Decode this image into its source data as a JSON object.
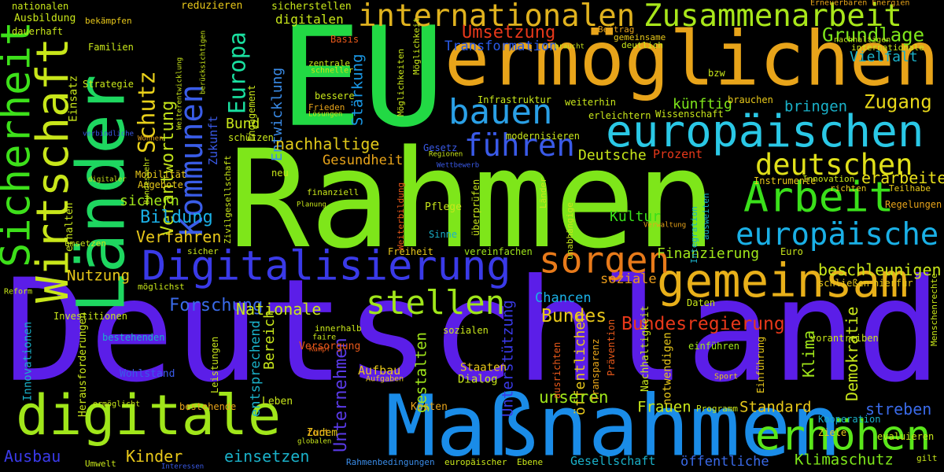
{
  "words": [
    "Deutschland",
    "Rahmen",
    "EU",
    "ermöglichen",
    "Länder",
    "Maßnahmen",
    "digitale",
    "Sicherheit",
    "Wirtschaft",
    "Kommunen",
    "Schutz",
    "Verantwortung",
    "Europa",
    "internationalen",
    "Zusammenarbeit",
    "bauen",
    "europäischen",
    "führen",
    "Arbeit",
    "deutschen",
    "europäische",
    "gemeinsam",
    "Digitalisierung",
    "sorgen",
    "stellen",
    "erhöhen",
    "Grundlage",
    "Vielfalt",
    "Umsetzung",
    "Transformation",
    "Bund",
    "Entwicklung",
    "nachhaltige",
    "Gesundheit",
    "Stärkung",
    "Deutsche",
    "Bildung",
    "sichern",
    "Verfahren",
    "Nutzung",
    "Forschung",
    "Nationale",
    "Bundes",
    "Bundesregierung",
    "Chancen",
    "soziale",
    "Finanzierung",
    "beschleunigen",
    "Kultur",
    "Zugang",
    "bringen",
    "künftig",
    "erarbeiten",
    "Demokratie",
    "Klima",
    "Unterstützung",
    "öffentlichen",
    "gestalten",
    "Unternehmen",
    "entsprechend",
    "Bereich",
    "unseren",
    "Frauen",
    "Standard",
    "streben",
    "Ausbau",
    "Kinder",
    "einsetzen",
    "Klimaschutz",
    "Gesellschaft",
    "öffentliche",
    "Dialog",
    "Staaten",
    "Aufbau",
    "Aufgaben",
    "Kosten",
    "Zudem",
    "Leben",
    "Wohlstand",
    "Innovationen",
    "Herausforderungen",
    "Investitionen",
    "bestehenden",
    "möglichst",
    "Versorgung",
    "innerhalb",
    "sozialen",
    "Freiheit",
    "vereinfachen",
    "Pflege",
    "Sinne",
    "Prozent",
    "Instrumente",
    "Innovation",
    "richten",
    "Teilhabe",
    "Regelungen",
    "Euro",
    "schließen",
    "hierfür",
    "Daten",
    "vorantreiben",
    "Sport",
    "Einführung",
    "einführen",
    "Prävention",
    "notwendigen",
    "Nachhaltigkeit",
    "Kooperation",
    "Ziele",
    "evaluieren",
    "gilt",
    "Menschenrechte",
    "Erneuerbaren Energien",
    "nachhaltigen",
    "internationale",
    "bzw",
    "weiterhin",
    "erleichtern",
    "Wissenschaft",
    "brauchen",
    "Infrastruktur",
    "modernisieren",
    "Gesetz",
    "Beitrag",
    "gemeinsame",
    "deutlich",
    "braucht",
    "Basis",
    "zentrale",
    "schneller",
    "bessere",
    "Frieden",
    "Lösungen",
    "Möglichkeiten",
    "Möglichkeit",
    "Zukunft",
    "Engagement",
    "schützen",
    "Strategie",
    "Familien",
    "dauerhaft",
    "Ausbildung",
    "nationalen",
    "bekämpfen",
    "reduzieren",
    "sicherstellen",
    "digitalen",
    "Einsatz",
    "Mobilität",
    "Angebote",
    "erhalten",
    "umsetzen",
    "sicher",
    "Reform",
    "faire",
    "Kampf",
    "finanziell",
    "Planung",
    "neu",
    "fort",
    "globalen",
    "Umwelt",
    "ermöglicht",
    "bestehende",
    "Leistungen",
    "ausrichten",
    "Transparenz",
    "Programm",
    "Rahmenbedingungen",
    "europäischer",
    "Ebene",
    "Interessen",
    "überprüfen",
    "unabhängige",
    "Länder",
    "Integration",
    "ausweiten",
    "Verwaltung",
    "Wettbewerb",
    "Regionen",
    "Weiterbildung",
    "Zivilgesellschaft",
    "Bundeswehr",
    "digitaler",
    "Wohnen",
    "verbindliche",
    "Weiterentwicklung",
    "berücksichtigen"
  ]
}
